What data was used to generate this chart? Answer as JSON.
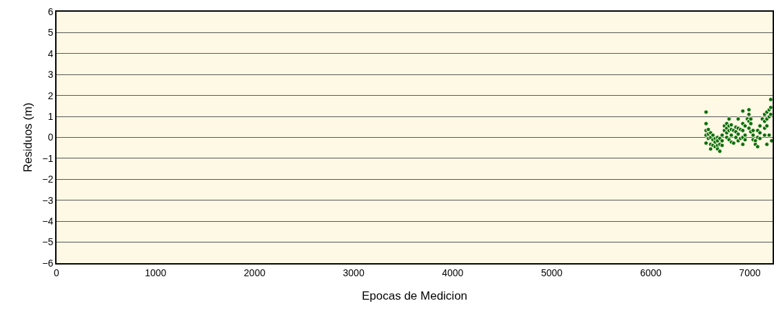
{
  "chart_data": {
    "type": "scatter",
    "xlabel": "Epocas de Medicion",
    "ylabel": "Residuos (m)",
    "xlim": [
      0,
      7230
    ],
    "xticks": [
      0,
      1000,
      2000,
      3000,
      4000,
      5000,
      6000,
      7000
    ],
    "ylim": [
      -6,
      6
    ],
    "yticks": [
      6,
      5,
      4,
      3,
      2,
      1,
      0,
      {
        "value": -1,
        "label": "−1"
      },
      {
        "value": -2,
        "label": "−2"
      },
      {
        "value": -3,
        "label": "−3"
      },
      {
        "value": -4,
        "label": "−4"
      },
      {
        "value": -5,
        "label": "−5"
      },
      {
        "value": -6,
        "label": "−6"
      }
    ],
    "grid": "y",
    "marker": "circle",
    "x": [
      6558,
      6558,
      6558,
      6558,
      6558,
      6581,
      6581,
      6581,
      6604,
      6604,
      6604,
      6604,
      6627,
      6627,
      6627,
      6650,
      6650,
      6650,
      6674,
      6674,
      6674,
      6674,
      6697,
      6697,
      6697,
      6720,
      6720,
      6720,
      6743,
      6743,
      6767,
      6767,
      6767,
      6767,
      6790,
      6790,
      6790,
      6790,
      6813,
      6813,
      6813,
      6813,
      6836,
      6836,
      6859,
      6859,
      6859,
      6882,
      6882,
      6882,
      6882,
      6906,
      6906,
      6929,
      6929,
      6929,
      6929,
      6929,
      6952,
      6952,
      6952,
      6975,
      6991,
      6991,
      6991,
      6991,
      7010,
      7010,
      7010,
      7033,
      7033,
      7033,
      7056,
      7056,
      7079,
      7079,
      7079,
      7102,
      7102,
      7102,
      7126,
      7149,
      7149,
      7149,
      7149,
      7172,
      7172,
      7172,
      7172,
      7195,
      7195,
      7195,
      7211,
      7211,
      7211,
      7220
    ],
    "series": [
      {
        "color": "#0b6e0b",
        "values": [
          1.21,
          0.66,
          0.33,
          0.11,
          -0.27,
          0.38,
          0.16,
          -0.05,
          0.22,
          0,
          -0.33,
          -0.55,
          0.11,
          -0.11,
          -0.38,
          -0.05,
          -0.22,
          -0.44,
          0,
          -0.16,
          -0.38,
          -0.55,
          -0.05,
          -0.33,
          -0.66,
          0.11,
          -0.16,
          -0.38,
          0.55,
          0.33,
          0.66,
          0.44,
          0.22,
          0,
          0.88,
          0.55,
          0.33,
          -0.11,
          0.6,
          0.38,
          0.11,
          -0.22,
          0.33,
          -0.27,
          0.49,
          0.27,
          0,
          0.88,
          0.44,
          0.16,
          -0.16,
          0.38,
          -0.05,
          1.26,
          0.66,
          0.33,
          0,
          -0.33,
          0.55,
          0.11,
          -0.11,
          0.88,
          1.32,
          1.1,
          0.77,
          0.44,
          0.88,
          0.66,
          0.27,
          0.33,
          0.11,
          -0.11,
          -0.16,
          -0.33,
          0.33,
          0,
          -0.44,
          0.55,
          0.22,
          -0.05,
          0.88,
          1.1,
          0.77,
          0.44,
          0.11,
          1.21,
          0.88,
          0.55,
          -0.33,
          1.32,
          0.99,
          0.11,
          1.81,
          1.43,
          1.1,
          -0.16
        ]
      }
    ]
  }
}
